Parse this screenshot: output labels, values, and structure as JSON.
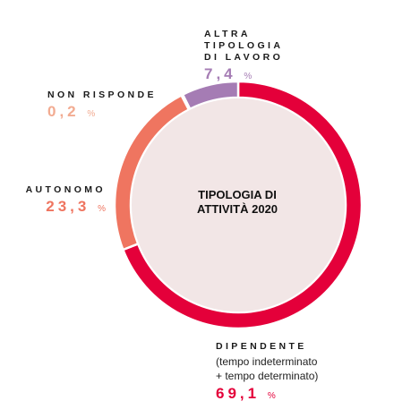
{
  "chart_data": {
    "type": "pie",
    "title": "TIPOLOGIA DI\nATTIVITÀ 2020",
    "unit": "%",
    "slices": [
      {
        "name": "DIPENDENTE",
        "value": 69.1,
        "display": "69,1",
        "color": "#e4003a",
        "note": "(tempo indeterminato\n+ tempo determinato)"
      },
      {
        "name": "AUTONOMO",
        "value": 23.3,
        "display": "23,3",
        "color": "#ef7560"
      },
      {
        "name": "NON RISPONDE",
        "value": 0.2,
        "display": "0,2",
        "color": "#f2ab91"
      },
      {
        "name": "ALTRA\nTIPOLOGIA\nDI LAVORO",
        "value": 7.4,
        "display": "7,4",
        "color": "#a57cb4"
      }
    ]
  },
  "colors": {
    "center_fill": "#f2e6e6",
    "center_text": "#111111"
  }
}
